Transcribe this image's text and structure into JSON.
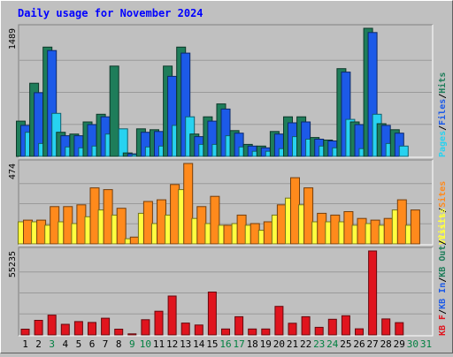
{
  "chart_data": {
    "type": "bar",
    "title": "Daily usage for November 2024",
    "categories": [
      "1",
      "2",
      "3",
      "4",
      "5",
      "6",
      "7",
      "8",
      "9",
      "10",
      "11",
      "12",
      "13",
      "14",
      "15",
      "16",
      "17",
      "18",
      "19",
      "20",
      "21",
      "22",
      "23",
      "24",
      "25",
      "26",
      "27",
      "28",
      "29",
      "30",
      "31"
    ],
    "weekend_days": [
      "3",
      "9",
      "10",
      "16",
      "17",
      "23",
      "24",
      "30",
      "31"
    ],
    "colors": {
      "background": "#c0c0c0",
      "title": "#0000ff",
      "hits": "#1e7d5a",
      "files": "#1c5ae8",
      "pages": "#27d2f0",
      "visits": "#ffff40",
      "sites": "#ff8a1c",
      "kbin": "#1c5ae8",
      "kbout": "#1e7d5a",
      "kbf": "#e0141e",
      "weekday_label": "#000000",
      "weekend_label": "#008040"
    },
    "panels": [
      {
        "name": "hits-panel",
        "ymax": 1489,
        "ymax_label": "1489",
        "legend": [
          {
            "text": "Pages",
            "color": "#27d2f0"
          },
          {
            "text": "/",
            "color": "#000000"
          },
          {
            "text": "Files",
            "color": "#1c5ae8"
          },
          {
            "text": "/",
            "color": "#000000"
          },
          {
            "text": "Hits",
            "color": "#1e7d5a"
          }
        ],
        "series": [
          {
            "name": "Hits",
            "color": "#1e7d5a",
            "values": [
              410,
              850,
              1270,
              280,
              260,
              400,
              490,
              1050,
              40,
              320,
              310,
              1050,
              1270,
              260,
              460,
              610,
              300,
              140,
              120,
              290,
              460,
              460,
              220,
              190,
              1020,
              400,
              1489,
              380,
              310,
              0,
              0
            ]
          },
          {
            "name": "Files",
            "color": "#1c5ae8",
            "values": [
              360,
              740,
              1230,
              240,
              240,
              370,
              460,
              0,
              30,
              280,
              290,
              930,
              1200,
              230,
              410,
              550,
              270,
              120,
              100,
              260,
              390,
              400,
              200,
              180,
              980,
              370,
              1440,
              360,
              270,
              0,
              0
            ]
          },
          {
            "name": "Pages",
            "color": "#27d2f0",
            "values": [
              280,
              150,
              500,
              110,
              100,
              120,
              260,
              320,
              20,
              110,
              120,
              360,
              460,
              140,
              140,
              240,
              110,
              60,
              60,
              90,
              230,
              200,
              120,
              100,
              430,
              90,
              490,
              150,
              120,
              0,
              0
            ]
          }
        ]
      },
      {
        "name": "sites-panel",
        "ymax": 474,
        "ymax_label": "474",
        "legend": [
          {
            "text": "Visits",
            "color": "#ffff40"
          },
          {
            "text": "/",
            "color": "#000000"
          },
          {
            "text": "Sites",
            "color": "#ff8a1c"
          }
        ],
        "series": [
          {
            "name": "Visits",
            "color": "#ffff40",
            "values": [
              130,
              130,
              110,
              130,
              120,
              160,
              200,
              170,
              30,
              180,
              120,
              170,
              320,
              150,
              120,
              110,
              120,
              110,
              80,
              170,
              270,
              230,
              130,
              130,
              130,
              110,
              120,
              110,
              200,
              110,
              0
            ]
          },
          {
            "name": "Sites",
            "color": "#ff8a1c",
            "values": [
              140,
              140,
              220,
              220,
              230,
              330,
              320,
              210,
              40,
              250,
              260,
              350,
              474,
              220,
              280,
              110,
              170,
              120,
              130,
              230,
              390,
              330,
              180,
              170,
              190,
              150,
              140,
              150,
              260,
              200,
              0
            ]
          }
        ]
      },
      {
        "name": "kbytes-panel",
        "ymax": 55235,
        "ymax_label": "55235",
        "legend": [
          {
            "text": "KB F",
            "color": "#e0141e"
          },
          {
            "text": "/",
            "color": "#000000"
          },
          {
            "text": "KB In",
            "color": "#1c5ae8"
          },
          {
            "text": "/",
            "color": "#000000"
          },
          {
            "text": "KB Out",
            "color": "#1e7d5a"
          },
          {
            "text": "/",
            "color": "#000000"
          },
          {
            "text": "Visits",
            "color": "#ffff40"
          }
        ],
        "series": [
          {
            "name": "KB F",
            "color": "#e0141e",
            "values": [
              3800,
              9600,
              13000,
              7000,
              8800,
              8200,
              11000,
              3800,
              700,
              10000,
              15600,
              25600,
              7800,
              6500,
              28200,
              3900,
              12000,
              3900,
              3900,
              18800,
              7700,
              12000,
              5000,
              10300,
              12600,
              4000,
              55235,
              10500,
              8100,
              0,
              0
            ]
          }
        ]
      }
    ]
  }
}
